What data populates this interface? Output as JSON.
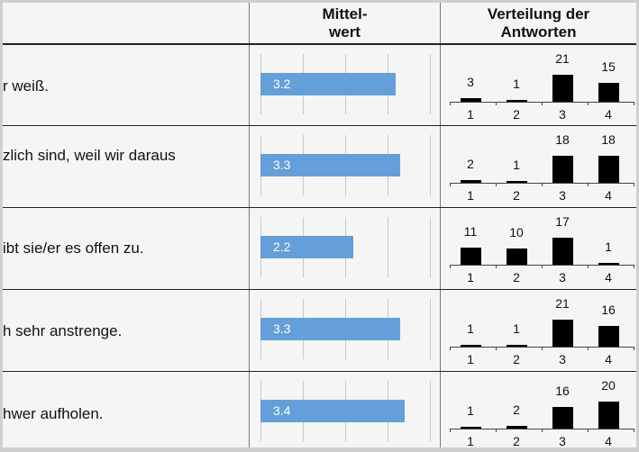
{
  "header": {
    "mean_line1": "Mittel-",
    "mean_line2": "wert",
    "dist_line1": "Verteilung der",
    "dist_line2": "Antworten"
  },
  "colors": {
    "mean_bar": "#659fd9",
    "dist_bar": "#000000"
  },
  "chart_data": {
    "type": "table",
    "mean_axis": {
      "range": [
        0,
        4
      ],
      "grid": true
    },
    "distribution_categories": [
      "1",
      "2",
      "3",
      "4"
    ],
    "rows": [
      {
        "text": "r weiß.",
        "mean": 3.2,
        "mean_label": "3.2",
        "distribution": [
          3,
          1,
          21,
          15
        ]
      },
      {
        "text": "zlich sind, weil wir daraus",
        "mean": 3.3,
        "mean_label": "3.3",
        "distribution": [
          2,
          1,
          18,
          18
        ]
      },
      {
        "text": "ibt sie/er es offen zu.",
        "mean": 2.2,
        "mean_label": "2.2",
        "distribution": [
          11,
          10,
          17,
          1
        ]
      },
      {
        "text": "h sehr anstrenge.",
        "mean": 3.3,
        "mean_label": "3.3",
        "distribution": [
          1,
          1,
          21,
          16
        ]
      },
      {
        "text": "hwer aufholen.",
        "mean": 3.4,
        "mean_label": "3.4",
        "distribution": [
          1,
          2,
          16,
          20
        ]
      }
    ]
  }
}
